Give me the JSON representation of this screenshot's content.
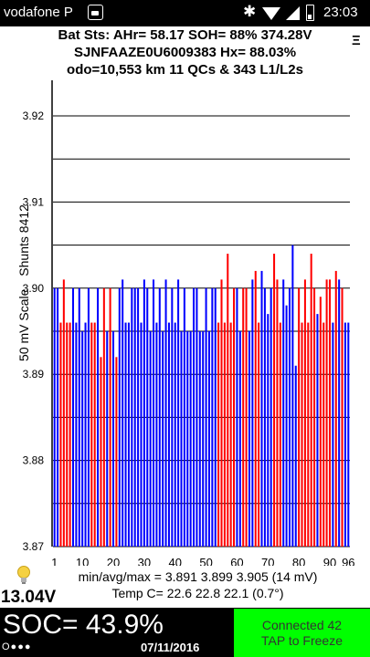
{
  "status_bar": {
    "carrier": "vodafone P",
    "time": "23:03",
    "icons": [
      "app-icon",
      "bluetooth-icon",
      "wifi-icon",
      "signal-icon",
      "battery-icon"
    ]
  },
  "header": {
    "line1": "Bat Sts: AHr= 58.17 SOH= 88% 374.28V",
    "line2": "SJNFAAZE0U6009383   Hx= 88.03%",
    "line3": "odo=10,553 km 11 QCs & 343 L1/L2s",
    "menu_icon": "Ξ"
  },
  "chart_data": {
    "type": "bar",
    "ylabel": "50 mV Scale",
    "shunts_label": "Shunts 8412",
    "ylim": [
      3.87,
      3.92
    ],
    "yticks": [
      "3.87",
      "3.88",
      "3.89",
      "3.90",
      "3.91",
      "3.92"
    ],
    "xticks": [
      1,
      10,
      20,
      30,
      40,
      50,
      60,
      70,
      80,
      90,
      96
    ],
    "bar_colors": {
      "normal": "#0000ff",
      "shunted": "#ff0000"
    },
    "cells": [
      {
        "v": 3.9,
        "s": 0
      },
      {
        "v": 3.9,
        "s": 0
      },
      {
        "v": 3.896,
        "s": 1
      },
      {
        "v": 3.901,
        "s": 1
      },
      {
        "v": 3.896,
        "s": 1
      },
      {
        "v": 3.896,
        "s": 1
      },
      {
        "v": 3.9,
        "s": 0
      },
      {
        "v": 3.896,
        "s": 0
      },
      {
        "v": 3.9,
        "s": 0
      },
      {
        "v": 3.895,
        "s": 0
      },
      {
        "v": 3.896,
        "s": 0
      },
      {
        "v": 3.9,
        "s": 0
      },
      {
        "v": 3.896,
        "s": 1
      },
      {
        "v": 3.896,
        "s": 1
      },
      {
        "v": 3.9,
        "s": 0
      },
      {
        "v": 3.892,
        "s": 1
      },
      {
        "v": 3.9,
        "s": 1
      },
      {
        "v": 3.895,
        "s": 0
      },
      {
        "v": 3.9,
        "s": 1
      },
      {
        "v": 3.895,
        "s": 0
      },
      {
        "v": 3.892,
        "s": 1
      },
      {
        "v": 3.9,
        "s": 0
      },
      {
        "v": 3.901,
        "s": 0
      },
      {
        "v": 3.896,
        "s": 0
      },
      {
        "v": 3.896,
        "s": 0
      },
      {
        "v": 3.9,
        "s": 0
      },
      {
        "v": 3.9,
        "s": 0
      },
      {
        "v": 3.9,
        "s": 0
      },
      {
        "v": 3.896,
        "s": 0
      },
      {
        "v": 3.901,
        "s": 0
      },
      {
        "v": 3.9,
        "s": 0
      },
      {
        "v": 3.895,
        "s": 0
      },
      {
        "v": 3.901,
        "s": 0
      },
      {
        "v": 3.896,
        "s": 0
      },
      {
        "v": 3.9,
        "s": 0
      },
      {
        "v": 3.895,
        "s": 0
      },
      {
        "v": 3.901,
        "s": 0
      },
      {
        "v": 3.896,
        "s": 0
      },
      {
        "v": 3.9,
        "s": 0
      },
      {
        "v": 3.896,
        "s": 0
      },
      {
        "v": 3.901,
        "s": 0
      },
      {
        "v": 3.895,
        "s": 0
      },
      {
        "v": 3.9,
        "s": 0
      },
      {
        "v": 3.895,
        "s": 0
      },
      {
        "v": 3.895,
        "s": 0
      },
      {
        "v": 3.9,
        "s": 0
      },
      {
        "v": 3.9,
        "s": 0
      },
      {
        "v": 3.895,
        "s": 0
      },
      {
        "v": 3.895,
        "s": 0
      },
      {
        "v": 3.9,
        "s": 0
      },
      {
        "v": 3.895,
        "s": 0
      },
      {
        "v": 3.9,
        "s": 0
      },
      {
        "v": 3.9,
        "s": 0
      },
      {
        "v": 3.896,
        "s": 1
      },
      {
        "v": 3.901,
        "s": 1
      },
      {
        "v": 3.896,
        "s": 1
      },
      {
        "v": 3.904,
        "s": 1
      },
      {
        "v": 3.896,
        "s": 1
      },
      {
        "v": 3.9,
        "s": 1
      },
      {
        "v": 3.9,
        "s": 0
      },
      {
        "v": 3.895,
        "s": 0
      },
      {
        "v": 3.9,
        "s": 1
      },
      {
        "v": 3.9,
        "s": 1
      },
      {
        "v": 3.895,
        "s": 0
      },
      {
        "v": 3.901,
        "s": 0
      },
      {
        "v": 3.902,
        "s": 1
      },
      {
        "v": 3.896,
        "s": 1
      },
      {
        "v": 3.902,
        "s": 0
      },
      {
        "v": 3.9,
        "s": 0
      },
      {
        "v": 3.897,
        "s": 0
      },
      {
        "v": 3.9,
        "s": 0
      },
      {
        "v": 3.904,
        "s": 1
      },
      {
        "v": 3.901,
        "s": 1
      },
      {
        "v": 3.896,
        "s": 1
      },
      {
        "v": 3.901,
        "s": 0
      },
      {
        "v": 3.898,
        "s": 0
      },
      {
        "v": 3.9,
        "s": 0
      },
      {
        "v": 3.905,
        "s": 0
      },
      {
        "v": 3.891,
        "s": 0
      },
      {
        "v": 3.9,
        "s": 1
      },
      {
        "v": 3.896,
        "s": 1
      },
      {
        "v": 3.901,
        "s": 1
      },
      {
        "v": 3.896,
        "s": 1
      },
      {
        "v": 3.904,
        "s": 1
      },
      {
        "v": 3.9,
        "s": 1
      },
      {
        "v": 3.897,
        "s": 0
      },
      {
        "v": 3.899,
        "s": 1
      },
      {
        "v": 3.896,
        "s": 1
      },
      {
        "v": 3.901,
        "s": 1
      },
      {
        "v": 3.901,
        "s": 1
      },
      {
        "v": 3.896,
        "s": 0
      },
      {
        "v": 3.902,
        "s": 1
      },
      {
        "v": 3.901,
        "s": 0
      },
      {
        "v": 3.9,
        "s": 1
      },
      {
        "v": 3.896,
        "s": 0
      },
      {
        "v": 3.896,
        "s": 0
      }
    ]
  },
  "footer": {
    "minmax": "min/avg/max = 3.891  3.899  3.905  (14 mV)",
    "temp": "Temp C= 22.6   22.8   22.1   (0.7°)",
    "voltage": "13.04V",
    "soc": "SOC= 43.9%",
    "dots": "O●●●",
    "date": "07/11/2016",
    "button_line1": "Connected 42",
    "button_line2": "TAP to Freeze"
  }
}
